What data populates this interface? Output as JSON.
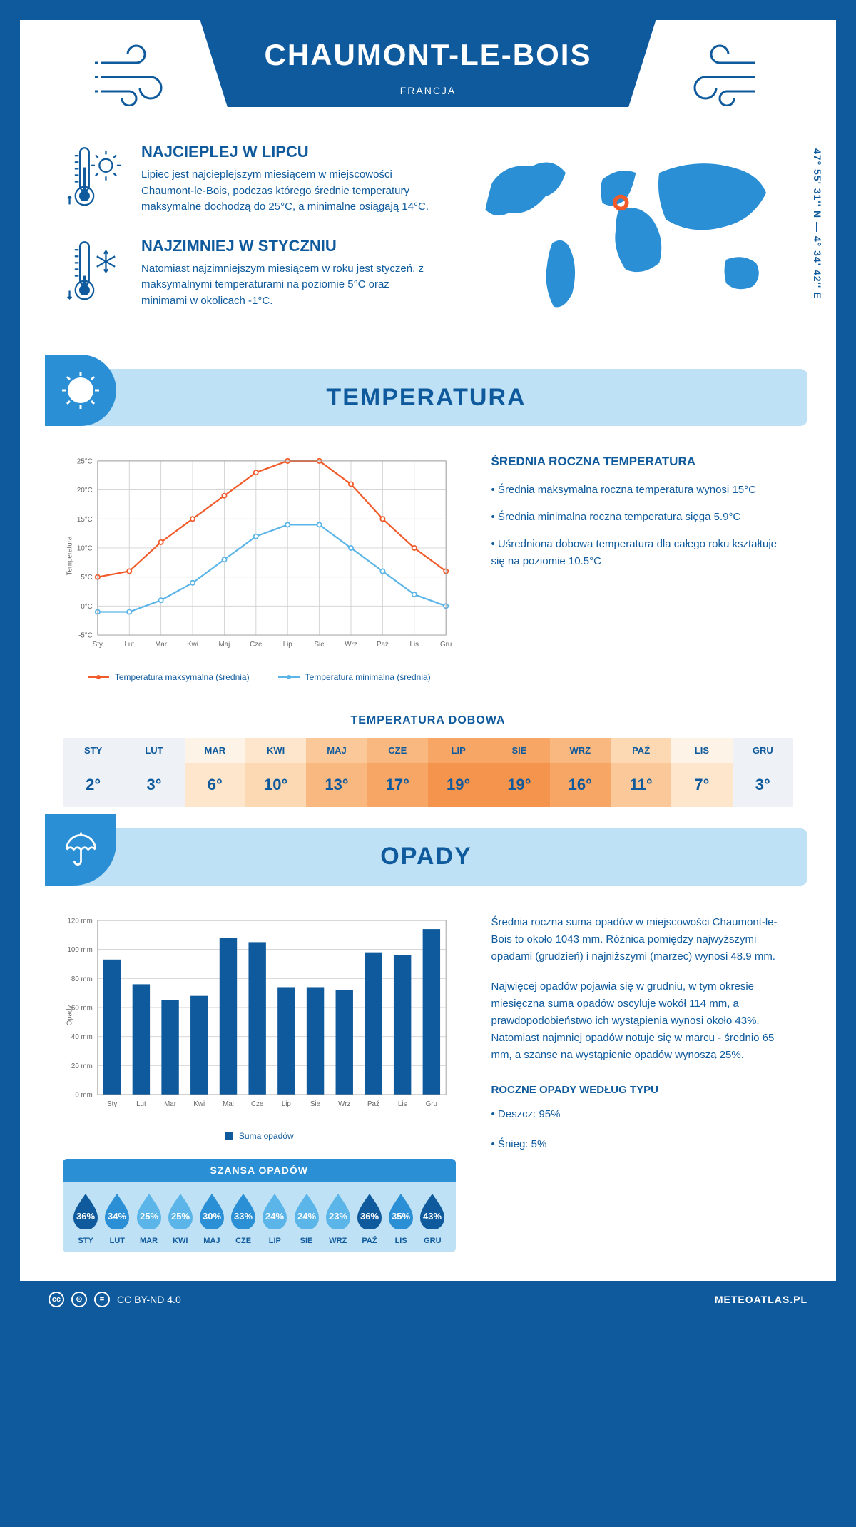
{
  "header": {
    "city": "CHAUMONT-LE-BOIS",
    "country": "FRANCJA",
    "coords": "47° 55' 31'' N — 4° 34' 42'' E"
  },
  "colors": {
    "primary": "#0f5a9c",
    "section_bg": "#bfe1f5",
    "accent": "#2a8fd4",
    "max_line": "#f15a29",
    "min_line": "#5bb5e8",
    "grid": "#d0d0d0",
    "bar": "#0f5a9c"
  },
  "info": {
    "hot": {
      "title": "NAJCIEPLEJ W LIPCU",
      "text": "Lipiec jest najcieplejszym miesiącem w miejscowości Chaumont-le-Bois, podczas którego średnie temperatury maksymalne dochodzą do 25°C, a minimalne osiągają 14°C."
    },
    "cold": {
      "title": "NAJZIMNIEJ W STYCZNIU",
      "text": "Natomiast najzimniejszym miesiącem w roku jest styczeń, z maksymalnymi temperaturami na poziomie 5°C oraz minimami w okolicach -1°C."
    }
  },
  "map_marker": {
    "cx_pct": 48.5,
    "cy_pct": 32
  },
  "sections": {
    "temp": "TEMPERATURA",
    "precip": "OPADY"
  },
  "temp_chart": {
    "y_axis_label": "Temperatura",
    "months": [
      "Sty",
      "Lut",
      "Mar",
      "Kwi",
      "Maj",
      "Cze",
      "Lip",
      "Sie",
      "Wrz",
      "Paź",
      "Lis",
      "Gru"
    ],
    "ylim": [
      -5,
      25
    ],
    "ytick_step": 5,
    "y_tick_suffix": "°C",
    "max_series": [
      5,
      6,
      11,
      15,
      19,
      23,
      25,
      25,
      21,
      15,
      10,
      6
    ],
    "min_series": [
      -1,
      -1,
      1,
      4,
      8,
      12,
      14,
      14,
      10,
      6,
      2,
      0
    ],
    "legend_max": "Temperatura maksymalna (średnia)",
    "legend_min": "Temperatura minimalna (średnia)"
  },
  "temp_side": {
    "title": "ŚREDNIA ROCZNA TEMPERATURA",
    "bullets": [
      "• Średnia maksymalna roczna temperatura wynosi 15°C",
      "• Średnia minimalna roczna temperatura sięga 5.9°C",
      "• Uśredniona dobowa temperatura dla całego roku kształtuje się na poziomie 10.5°C"
    ]
  },
  "daily_temp": {
    "title": "TEMPERATURA DOBOWA",
    "months": [
      "STY",
      "LUT",
      "MAR",
      "KWI",
      "MAJ",
      "CZE",
      "LIP",
      "SIE",
      "WRZ",
      "PAŹ",
      "LIS",
      "GRU"
    ],
    "values": [
      "2°",
      "3°",
      "6°",
      "10°",
      "13°",
      "17°",
      "19°",
      "19°",
      "16°",
      "11°",
      "7°",
      "3°"
    ],
    "raw": [
      2,
      3,
      6,
      10,
      13,
      17,
      19,
      19,
      16,
      11,
      7,
      3
    ],
    "scale_colors": [
      "#eef2f6",
      "#fdf3e6",
      "#fde6cc",
      "#fcd9b3",
      "#fbc999",
      "#f9b87f",
      "#f7a666",
      "#f5944d"
    ]
  },
  "precip_chart": {
    "y_axis_label": "Opady",
    "months": [
      "Sty",
      "Lut",
      "Mar",
      "Kwi",
      "Maj",
      "Cze",
      "Lip",
      "Sie",
      "Wrz",
      "Paź",
      "Lis",
      "Gru"
    ],
    "values": [
      93,
      76,
      65,
      68,
      108,
      105,
      74,
      74,
      72,
      98,
      96,
      114
    ],
    "ylim": [
      0,
      120
    ],
    "ytick_step": 20,
    "y_tick_suffix": " mm",
    "legend": "Suma opadów"
  },
  "precip_info": {
    "p1": "Średnia roczna suma opadów w miejscowości Chaumont-le-Bois to około 1043 mm. Różnica pomiędzy najwyższymi opadami (grudzień) i najniższymi (marzec) wynosi 48.9 mm.",
    "p2": "Najwięcej opadów pojawia się w grudniu, w tym okresie miesięczna suma opadów oscyluje wokół 114 mm, a prawdopodobieństwo ich wystąpienia wynosi około 43%. Natomiast najmniej opadów notuje się w marcu - średnio 65 mm, a szanse na wystąpienie opadów wynoszą 25%.",
    "type_title": "ROCZNE OPADY WEDŁUG TYPU",
    "type_bullets": [
      "• Deszcz: 95%",
      "• Śnieg: 5%"
    ]
  },
  "chance": {
    "title": "SZANSA OPADÓW",
    "months": [
      "STY",
      "LUT",
      "MAR",
      "KWI",
      "MAJ",
      "CZE",
      "LIP",
      "SIE",
      "WRZ",
      "PAŹ",
      "LIS",
      "GRU"
    ],
    "values": [
      36,
      34,
      25,
      25,
      30,
      33,
      24,
      24,
      23,
      36,
      35,
      43
    ],
    "drop_colors": {
      "low": "#5bb5e8",
      "mid": "#2a8fd4",
      "high": "#0f5a9c"
    }
  },
  "footer": {
    "license": "CC BY-ND 4.0",
    "site": "METEOATLAS.PL"
  }
}
